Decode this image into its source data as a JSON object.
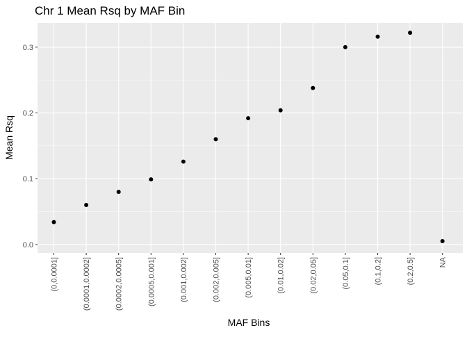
{
  "chart_data": {
    "type": "scatter",
    "title": "Chr 1 Mean Rsq by MAF Bin",
    "xlabel": "MAF Bins",
    "ylabel": "Mean Rsq",
    "categories": [
      "(0,0.0001]",
      "(0.0001,0.0002]",
      "(0.0002,0.0005]",
      "(0.0005,0.001]",
      "(0.001,0.002]",
      "(0.002,0.005]",
      "(0.005,0.01]",
      "(0.01,0.02]",
      "(0.02,0.05]",
      "(0.05,0.1]",
      "(0.1,0.2]",
      "(0.2,0.5]",
      "NA"
    ],
    "values": [
      0.034,
      0.06,
      0.08,
      0.099,
      0.126,
      0.16,
      0.192,
      0.204,
      0.238,
      0.3,
      0.316,
      0.322,
      0.005
    ],
    "yticks": [
      "0.0",
      "0.1",
      "0.2",
      "0.3"
    ],
    "ytick_values": [
      0.0,
      0.1,
      0.2,
      0.3
    ],
    "ylim": [
      -0.0129,
      0.3369
    ],
    "grid": true,
    "colors": {
      "panel_background": "#EBEBEB",
      "grid_major": "#FFFFFF",
      "point": "#000000",
      "axis_text": "#4D4D4D",
      "title_text": "#000000"
    }
  }
}
